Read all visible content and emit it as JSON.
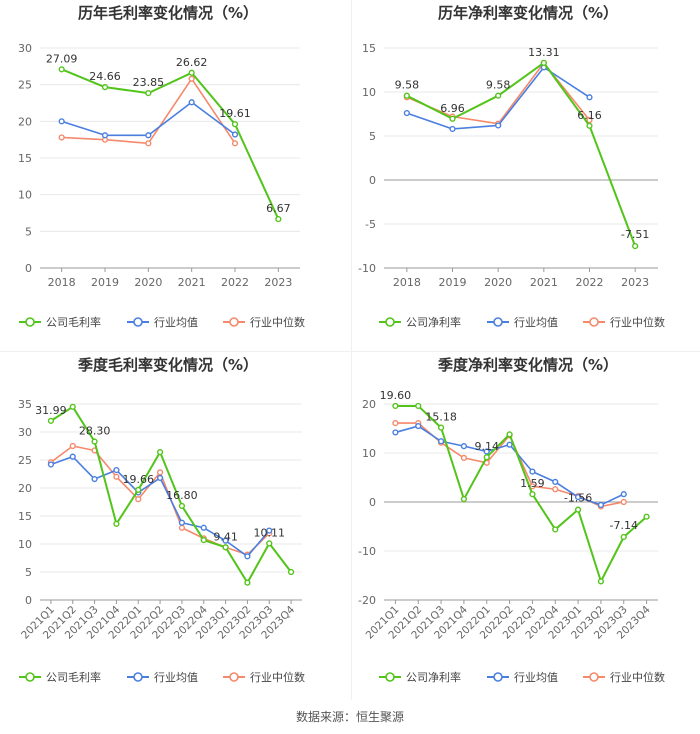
{
  "source_label": "数据来源：恒生聚源",
  "colors": {
    "company": "#52c41a",
    "avg": "#4a7fe0",
    "median": "#f5896b"
  },
  "chart_data": [
    {
      "type": "line",
      "title": "历年毛利率变化情况（%）",
      "categories": [
        "2018",
        "2019",
        "2020",
        "2021",
        "2022",
        "2023"
      ],
      "ylim": [
        0,
        30
      ],
      "yticks": [
        0,
        5,
        10,
        15,
        20,
        25,
        30
      ],
      "series": [
        {
          "name": "公司毛利率",
          "role": "company",
          "values": [
            27.09,
            24.66,
            23.85,
            26.62,
            19.61,
            6.67
          ],
          "labels": [
            "27.09",
            "24.66",
            "23.85",
            "26.62",
            "19.61",
            "6.67"
          ]
        },
        {
          "name": "行业均值",
          "role": "avg",
          "values": [
            20.0,
            18.1,
            18.1,
            22.6,
            18.2,
            null
          ]
        },
        {
          "name": "行业中位数",
          "role": "median",
          "values": [
            17.8,
            17.5,
            17.0,
            25.8,
            17.0,
            null
          ]
        }
      ]
    },
    {
      "type": "line",
      "title": "历年净利率变化情况（%）",
      "categories": [
        "2018",
        "2019",
        "2020",
        "2021",
        "2022",
        "2023"
      ],
      "ylim": [
        -10,
        15
      ],
      "yticks": [
        -10,
        -5,
        0,
        5,
        10,
        15
      ],
      "series": [
        {
          "name": "公司净利率",
          "role": "company",
          "values": [
            9.58,
            6.96,
            9.58,
            13.31,
            6.16,
            -7.51
          ],
          "labels": [
            "9.58",
            "6.96",
            "9.58",
            "13.31",
            "6.16",
            "-7.51"
          ]
        },
        {
          "name": "行业均值",
          "role": "avg",
          "values": [
            7.6,
            5.8,
            6.2,
            12.8,
            9.4,
            null
          ]
        },
        {
          "name": "行业中位数",
          "role": "median",
          "values": [
            9.4,
            7.2,
            6.4,
            13.3,
            6.8,
            null
          ]
        }
      ]
    },
    {
      "type": "line",
      "title": "季度毛利率变化情况（%）",
      "categories": [
        "2021Q1",
        "2021Q2",
        "2021Q3",
        "2021Q4",
        "2022Q1",
        "2022Q2",
        "2022Q3",
        "2022Q4",
        "2023Q1",
        "2023Q2",
        "2023Q3",
        "2023Q4"
      ],
      "ylim": [
        0,
        35
      ],
      "yticks": [
        0,
        5,
        10,
        15,
        20,
        25,
        30,
        35
      ],
      "series": [
        {
          "name": "公司毛利率",
          "role": "company",
          "values": [
            31.99,
            34.5,
            28.3,
            13.6,
            19.66,
            26.4,
            16.8,
            10.7,
            9.41,
            3.1,
            10.11,
            5.0
          ],
          "labels": [
            "31.99",
            "",
            "28.30",
            "",
            "19.66",
            "",
            "16.80",
            "",
            "9.41",
            "",
            "10.11",
            ""
          ]
        },
        {
          "name": "行业均值",
          "role": "avg",
          "values": [
            24.2,
            25.6,
            21.6,
            23.2,
            19.2,
            21.8,
            13.8,
            12.9,
            10.6,
            7.8,
            12.4,
            null
          ]
        },
        {
          "name": "行业中位数",
          "role": "median",
          "values": [
            24.6,
            27.5,
            26.7,
            22.0,
            18.0,
            22.8,
            12.9,
            11.0,
            9.4,
            8.1,
            11.9,
            null
          ]
        }
      ]
    },
    {
      "type": "line",
      "title": "季度净利率变化情况（%）",
      "categories": [
        "2021Q1",
        "2021Q2",
        "2021Q3",
        "2021Q4",
        "2022Q1",
        "2022Q2",
        "2022Q3",
        "2022Q4",
        "2023Q1",
        "2023Q2",
        "2023Q3",
        "2023Q4"
      ],
      "ylim": [
        -20,
        20
      ],
      "yticks": [
        -20,
        -10,
        0,
        10,
        20
      ],
      "series": [
        {
          "name": "公司净利率",
          "role": "company",
          "values": [
            19.6,
            19.6,
            15.18,
            0.6,
            9.14,
            13.8,
            1.59,
            -5.6,
            -1.56,
            -16.2,
            -7.14,
            -3.0
          ],
          "labels": [
            "19.60",
            "",
            "15.18",
            "",
            "9.14",
            "",
            "1.59",
            "",
            "-1.56",
            "",
            "-7.14",
            ""
          ]
        },
        {
          "name": "行业均值",
          "role": "avg",
          "values": [
            14.2,
            15.5,
            12.4,
            11.4,
            10.3,
            11.7,
            6.2,
            4.1,
            1.0,
            -0.6,
            1.6,
            null
          ]
        },
        {
          "name": "行业中位数",
          "role": "median",
          "values": [
            16.1,
            16.1,
            12.1,
            9.0,
            8.0,
            13.6,
            3.2,
            2.6,
            1.2,
            -0.9,
            0.0,
            null
          ]
        }
      ]
    }
  ]
}
